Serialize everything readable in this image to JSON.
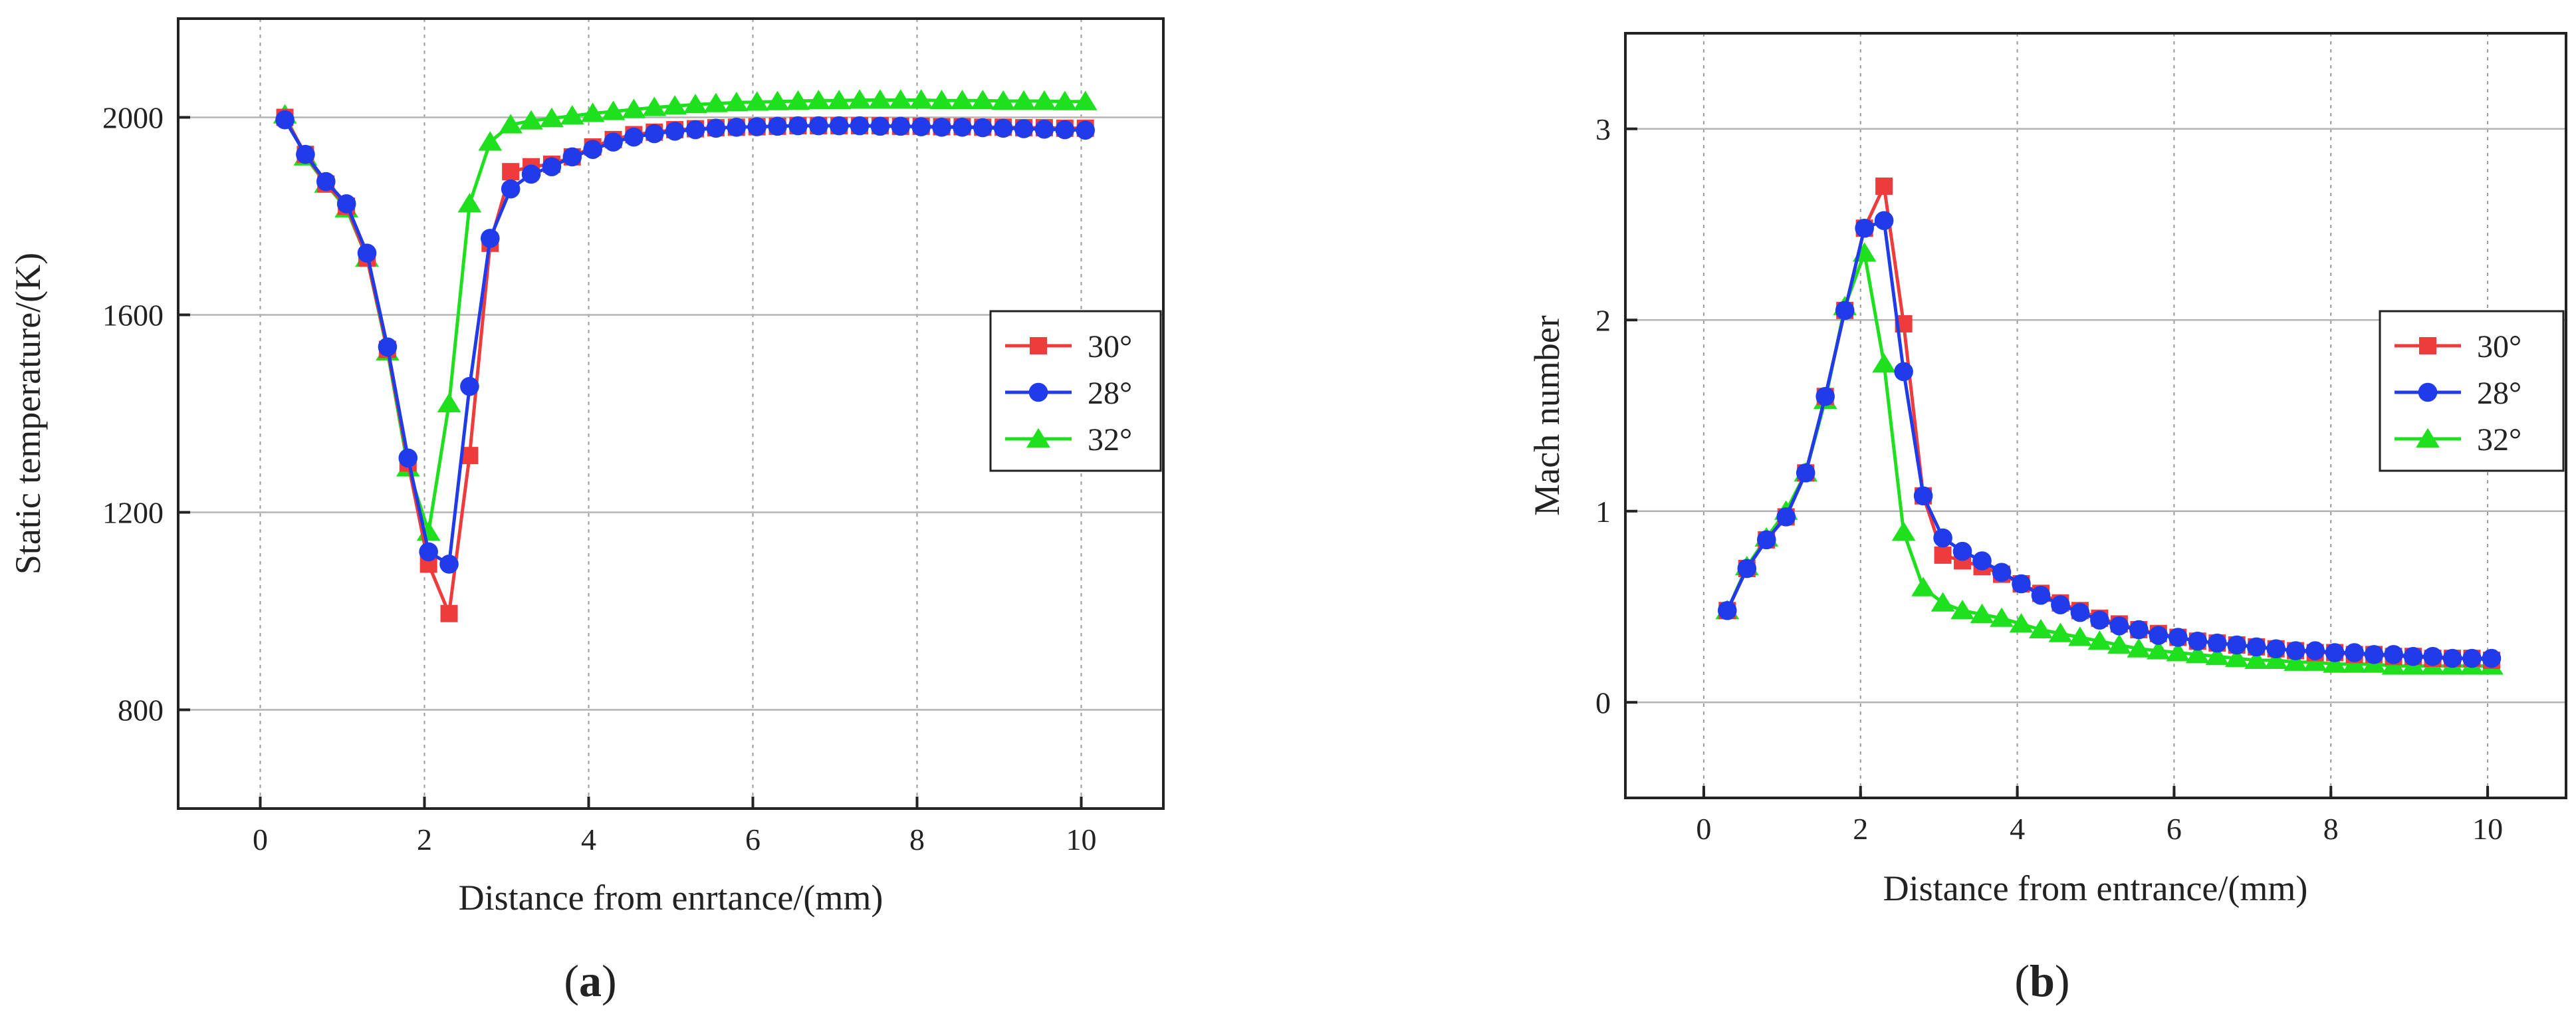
{
  "figure": {
    "panel_a_label": "a",
    "panel_b_label": "b"
  },
  "colors": {
    "30": "#ee3b3b",
    "28": "#1f3bea",
    "32": "#1ee01e"
  },
  "chart_data": [
    {
      "type": "line",
      "panel": "a",
      "title": "",
      "xlabel": "Distance from enrtance/(mm)",
      "ylabel": "Static temperature/(K)",
      "xlim": [
        -1,
        11
      ],
      "ylim": [
        600,
        2200
      ],
      "xticks": [
        0,
        2,
        4,
        6,
        8,
        10
      ],
      "yticks": [
        800,
        1200,
        1600,
        2000
      ],
      "vgrid": [
        0,
        2,
        4,
        6,
        8,
        10
      ],
      "hgrid": [
        800,
        1200,
        1600,
        2000
      ],
      "legend_position": "right",
      "series": [
        {
          "name": "30°",
          "marker": "square",
          "color": "#ee3b3b",
          "x": [
            0.3,
            0.55,
            0.8,
            1.05,
            1.3,
            1.55,
            1.8,
            2.05,
            2.3,
            2.55,
            2.8,
            3.05,
            3.3,
            3.55,
            3.8,
            4.05,
            4.3,
            4.55,
            4.8,
            5.05,
            5.3,
            5.55,
            5.8,
            6.05,
            6.3,
            6.55,
            6.8,
            7.05,
            7.3,
            7.55,
            7.8,
            8.05,
            8.3,
            8.55,
            8.8,
            9.05,
            9.3,
            9.55,
            9.8,
            10.05
          ],
          "y": [
            2000,
            1925,
            1865,
            1820,
            1715,
            1530,
            1300,
            1095,
            995,
            1315,
            1745,
            1890,
            1900,
            1905,
            1920,
            1940,
            1955,
            1965,
            1970,
            1975,
            1977,
            1979,
            1980,
            1981,
            1982,
            1983,
            1983,
            1983,
            1983,
            1983,
            1982,
            1982,
            1981,
            1981,
            1980,
            1980,
            1979,
            1979,
            1978,
            1978
          ]
        },
        {
          "name": "28°",
          "marker": "circle",
          "color": "#1f3bea",
          "x": [
            0.3,
            0.55,
            0.8,
            1.05,
            1.3,
            1.55,
            1.8,
            2.05,
            2.3,
            2.55,
            2.8,
            3.05,
            3.3,
            3.55,
            3.8,
            4.05,
            4.3,
            4.55,
            4.8,
            5.05,
            5.3,
            5.55,
            5.8,
            6.05,
            6.3,
            6.55,
            6.8,
            7.05,
            7.3,
            7.55,
            7.8,
            8.05,
            8.3,
            8.55,
            8.8,
            9.05,
            9.3,
            9.55,
            9.8,
            10.05
          ],
          "y": [
            1995,
            1925,
            1870,
            1825,
            1725,
            1535,
            1310,
            1120,
            1095,
            1455,
            1755,
            1855,
            1885,
            1900,
            1920,
            1935,
            1950,
            1960,
            1967,
            1972,
            1975,
            1978,
            1980,
            1981,
            1982,
            1983,
            1983,
            1983,
            1983,
            1982,
            1982,
            1981,
            1980,
            1980,
            1979,
            1978,
            1977,
            1976,
            1975,
            1974
          ]
        },
        {
          "name": "32°",
          "marker": "triangle",
          "color": "#1ee01e",
          "x": [
            0.3,
            0.55,
            0.8,
            1.05,
            1.3,
            1.55,
            1.8,
            2.05,
            2.3,
            2.55,
            2.8,
            3.05,
            3.3,
            3.55,
            3.8,
            4.05,
            4.3,
            4.55,
            4.8,
            5.05,
            5.3,
            5.55,
            5.8,
            6.05,
            6.3,
            6.55,
            6.8,
            7.05,
            7.3,
            7.55,
            7.8,
            8.05,
            8.3,
            8.55,
            8.8,
            9.05,
            9.3,
            9.55,
            9.8,
            10.05
          ],
          "y": [
            2005,
            1920,
            1865,
            1815,
            1715,
            1525,
            1290,
            1160,
            1420,
            1825,
            1950,
            1985,
            1993,
            1998,
            2003,
            2008,
            2012,
            2016,
            2020,
            2023,
            2026,
            2028,
            2030,
            2031,
            2032,
            2033,
            2034,
            2034,
            2035,
            2035,
            2035,
            2035,
            2034,
            2034,
            2034,
            2033,
            2033,
            2033,
            2032,
            2032
          ]
        }
      ]
    },
    {
      "type": "line",
      "panel": "b",
      "title": "",
      "xlabel": "Distance from entrance/(mm)",
      "ylabel": "Mach number",
      "xlim": [
        -1,
        11
      ],
      "ylim": [
        -0.5,
        3.5
      ],
      "xticks": [
        0,
        2,
        4,
        6,
        8,
        10
      ],
      "yticks": [
        0,
        1,
        2,
        3
      ],
      "vgrid": [
        0,
        2,
        4,
        6,
        8,
        10
      ],
      "hgrid": [
        0,
        1,
        2,
        3
      ],
      "legend_position": "right",
      "series": [
        {
          "name": "30°",
          "marker": "square",
          "color": "#ee3b3b",
          "x": [
            0.3,
            0.55,
            0.8,
            1.05,
            1.3,
            1.55,
            1.8,
            2.05,
            2.3,
            2.55,
            2.8,
            3.05,
            3.3,
            3.55,
            3.8,
            4.05,
            4.3,
            4.55,
            4.8,
            5.05,
            5.3,
            5.55,
            5.8,
            6.05,
            6.3,
            6.55,
            6.8,
            7.05,
            7.3,
            7.55,
            7.8,
            8.05,
            8.3,
            8.55,
            8.8,
            9.05,
            9.3,
            9.55,
            9.8,
            10.05
          ],
          "y": [
            0.48,
            0.7,
            0.85,
            0.97,
            1.2,
            1.6,
            2.05,
            2.48,
            2.7,
            1.98,
            1.08,
            0.77,
            0.74,
            0.71,
            0.67,
            0.62,
            0.57,
            0.52,
            0.48,
            0.44,
            0.41,
            0.38,
            0.36,
            0.34,
            0.32,
            0.31,
            0.3,
            0.29,
            0.28,
            0.27,
            0.26,
            0.26,
            0.25,
            0.25,
            0.24,
            0.24,
            0.23,
            0.23,
            0.23,
            0.22
          ]
        },
        {
          "name": "28°",
          "marker": "circle",
          "color": "#1f3bea",
          "x": [
            0.3,
            0.55,
            0.8,
            1.05,
            1.3,
            1.55,
            1.8,
            2.05,
            2.3,
            2.55,
            2.8,
            3.05,
            3.3,
            3.55,
            3.8,
            4.05,
            4.3,
            4.55,
            4.8,
            5.05,
            5.3,
            5.55,
            5.8,
            6.05,
            6.3,
            6.55,
            6.8,
            7.05,
            7.3,
            7.55,
            7.8,
            8.05,
            8.3,
            8.55,
            8.8,
            9.05,
            9.3,
            9.55,
            9.8,
            10.05
          ],
          "y": [
            0.48,
            0.7,
            0.85,
            0.97,
            1.2,
            1.6,
            2.05,
            2.48,
            2.52,
            1.73,
            1.08,
            0.86,
            0.79,
            0.74,
            0.68,
            0.62,
            0.56,
            0.51,
            0.47,
            0.43,
            0.4,
            0.38,
            0.35,
            0.34,
            0.32,
            0.31,
            0.3,
            0.29,
            0.28,
            0.27,
            0.27,
            0.26,
            0.26,
            0.25,
            0.25,
            0.24,
            0.24,
            0.23,
            0.23,
            0.23
          ]
        },
        {
          "name": "32°",
          "marker": "triangle",
          "color": "#1ee01e",
          "x": [
            0.3,
            0.55,
            0.8,
            1.05,
            1.3,
            1.55,
            1.8,
            2.05,
            2.3,
            2.55,
            2.8,
            3.05,
            3.3,
            3.55,
            3.8,
            4.05,
            4.3,
            4.55,
            4.8,
            5.05,
            5.3,
            5.55,
            5.8,
            6.05,
            6.3,
            6.55,
            6.8,
            7.05,
            7.3,
            7.55,
            7.8,
            8.05,
            8.3,
            8.55,
            8.8,
            9.05,
            9.3,
            9.55,
            9.8,
            10.05
          ],
          "y": [
            0.48,
            0.71,
            0.86,
            1.0,
            1.2,
            1.58,
            2.07,
            2.35,
            1.77,
            0.89,
            0.6,
            0.52,
            0.48,
            0.46,
            0.44,
            0.41,
            0.38,
            0.36,
            0.34,
            0.32,
            0.3,
            0.28,
            0.27,
            0.26,
            0.25,
            0.24,
            0.23,
            0.22,
            0.22,
            0.21,
            0.21,
            0.2,
            0.2,
            0.2,
            0.19,
            0.19,
            0.19,
            0.19,
            0.19,
            0.19
          ]
        }
      ]
    }
  ]
}
